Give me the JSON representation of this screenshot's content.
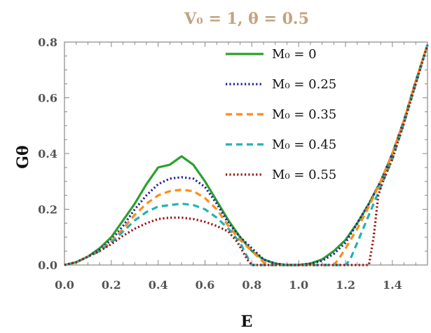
{
  "chart_data": {
    "type": "line",
    "title": "V₀ = 1, θ = 0.5",
    "xlabel": "E",
    "ylabel": "Gθ",
    "xlim": [
      0,
      1.55
    ],
    "ylim": [
      0,
      0.8
    ],
    "x_ticks": [
      0.0,
      0.2,
      0.4,
      0.6,
      0.8,
      1.0,
      1.2,
      1.4
    ],
    "x_tick_labels": [
      "0.0",
      "0.2",
      "0.4",
      "0.6",
      "0.8",
      "1.0",
      "1.2",
      "1.4"
    ],
    "y_ticks": [
      0.0,
      0.2,
      0.4,
      0.6,
      0.8
    ],
    "y_tick_labels": [
      "0.0",
      "0.2",
      "0.4",
      "0.6",
      "0.8"
    ],
    "legend_position": "top-right",
    "series": [
      {
        "name": "M₀ = 0",
        "color": "#2ca02c",
        "dash": "solid",
        "x": [
          0,
          0.05,
          0.1,
          0.15,
          0.2,
          0.25,
          0.3,
          0.35,
          0.4,
          0.45,
          0.5,
          0.55,
          0.6,
          0.65,
          0.7,
          0.75,
          0.8,
          0.85,
          0.9,
          0.95,
          1.0,
          1.05,
          1.1,
          1.15,
          1.2,
          1.25,
          1.3,
          1.35,
          1.4,
          1.45,
          1.5,
          1.55
        ],
        "values": [
          0.0,
          0.01,
          0.03,
          0.06,
          0.1,
          0.16,
          0.22,
          0.29,
          0.35,
          0.36,
          0.39,
          0.36,
          0.3,
          0.23,
          0.16,
          0.1,
          0.05,
          0.02,
          0.005,
          0.0,
          0.0,
          0.005,
          0.02,
          0.05,
          0.09,
          0.15,
          0.22,
          0.3,
          0.4,
          0.52,
          0.66,
          0.79
        ]
      },
      {
        "name": "M₀ = 0.25",
        "color": "#1f1fa0",
        "dash": "dotted",
        "x": [
          0,
          0.05,
          0.1,
          0.15,
          0.2,
          0.25,
          0.3,
          0.35,
          0.4,
          0.45,
          0.5,
          0.55,
          0.6,
          0.65,
          0.7,
          0.75,
          0.8,
          0.85,
          0.9,
          0.95,
          1.0,
          1.05,
          1.1,
          1.15,
          1.2,
          1.25,
          1.3,
          1.35,
          1.4,
          1.45,
          1.5,
          1.55
        ],
        "values": [
          0.0,
          0.01,
          0.03,
          0.055,
          0.09,
          0.14,
          0.2,
          0.25,
          0.29,
          0.31,
          0.315,
          0.31,
          0.28,
          0.22,
          0.15,
          0.1,
          0.06,
          0.02,
          0.005,
          0.0,
          0.0,
          0.005,
          0.015,
          0.04,
          0.08,
          0.15,
          0.22,
          0.3,
          0.4,
          0.52,
          0.66,
          0.79
        ]
      },
      {
        "name": "M₀ = 0.35",
        "color": "#ff8c1a",
        "dash": "dashed",
        "x": [
          0,
          0.05,
          0.1,
          0.15,
          0.2,
          0.25,
          0.3,
          0.35,
          0.4,
          0.45,
          0.5,
          0.55,
          0.6,
          0.65,
          0.7,
          0.75,
          0.8,
          0.85,
          0.88,
          0.9,
          1.0,
          1.1,
          1.15,
          1.17,
          1.2,
          1.25,
          1.3,
          1.35,
          1.4,
          1.45,
          1.5,
          1.55
        ],
        "values": [
          0.0,
          0.01,
          0.03,
          0.05,
          0.085,
          0.13,
          0.18,
          0.22,
          0.25,
          0.265,
          0.27,
          0.265,
          0.24,
          0.2,
          0.14,
          0.09,
          0.05,
          0.01,
          0.0,
          0.0,
          0.0,
          0.0,
          0.0,
          0.02,
          0.06,
          0.13,
          0.21,
          0.3,
          0.4,
          0.52,
          0.66,
          0.79
        ]
      },
      {
        "name": "M₀ = 0.45",
        "color": "#1fb3b3",
        "dash": "dashed",
        "x": [
          0,
          0.05,
          0.1,
          0.15,
          0.2,
          0.25,
          0.3,
          0.35,
          0.4,
          0.45,
          0.5,
          0.55,
          0.6,
          0.65,
          0.7,
          0.75,
          0.78,
          0.8,
          0.85,
          0.9,
          1.0,
          1.1,
          1.2,
          1.22,
          1.25,
          1.3,
          1.35,
          1.4,
          1.45,
          1.5,
          1.55
        ],
        "values": [
          0.0,
          0.01,
          0.03,
          0.05,
          0.08,
          0.12,
          0.16,
          0.19,
          0.21,
          0.215,
          0.22,
          0.215,
          0.2,
          0.17,
          0.13,
          0.08,
          0.03,
          0.0,
          0.0,
          0.0,
          0.0,
          0.0,
          0.0,
          0.02,
          0.08,
          0.18,
          0.28,
          0.38,
          0.51,
          0.65,
          0.79
        ]
      },
      {
        "name": "M₀ = 0.55",
        "color": "#a01010",
        "dash": "dotted",
        "x": [
          0,
          0.05,
          0.1,
          0.15,
          0.2,
          0.25,
          0.3,
          0.35,
          0.4,
          0.45,
          0.5,
          0.55,
          0.6,
          0.65,
          0.7,
          0.72,
          0.74,
          0.76,
          0.78,
          0.8,
          0.9,
          1.0,
          1.1,
          1.2,
          1.3,
          1.32,
          1.34,
          1.36,
          1.4,
          1.45,
          1.5,
          1.55
        ],
        "values": [
          0.0,
          0.01,
          0.03,
          0.05,
          0.075,
          0.105,
          0.13,
          0.15,
          0.165,
          0.17,
          0.17,
          0.165,
          0.155,
          0.14,
          0.12,
          0.1,
          0.08,
          0.05,
          0.02,
          0.0,
          0.0,
          0.0,
          0.0,
          0.0,
          0.0,
          0.1,
          0.25,
          0.3,
          0.38,
          0.51,
          0.65,
          0.79
        ]
      }
    ]
  }
}
